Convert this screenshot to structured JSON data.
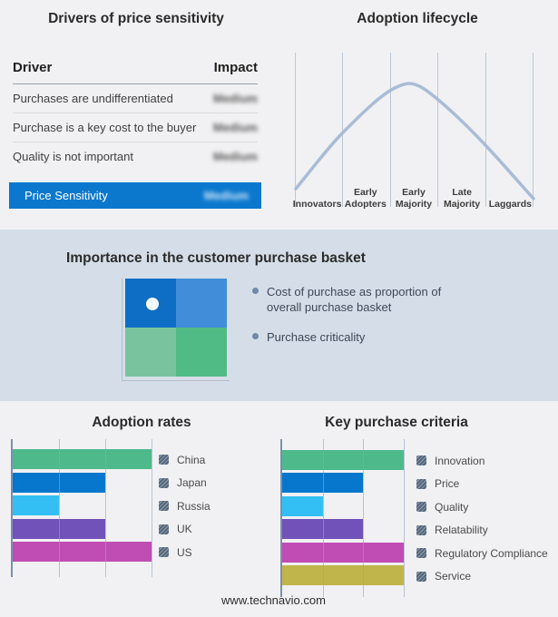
{
  "drivers": {
    "title": "Drivers of price sensitivity",
    "headers": {
      "driver": "Driver",
      "impact": "Impact"
    },
    "rows": [
      {
        "driver": "Purchases are undifferentiated",
        "impact": "Medium",
        "impact_blurred": true
      },
      {
        "driver": "Purchase is a key cost to the buyer",
        "impact": "Medium",
        "impact_blurred": true
      },
      {
        "driver": "Quality is not important",
        "impact": "Medium",
        "impact_blurred": true
      }
    ],
    "highlight": {
      "driver": "Price Sensitivity",
      "impact": "Medium",
      "impact_blurred": true,
      "row_color": "#0b78ce"
    }
  },
  "lifecycle": {
    "title": "Adoption lifecycle",
    "curve_color": "#a9bcd7",
    "stages": [
      {
        "line1": "",
        "line2": "Innovators"
      },
      {
        "line1": "Early",
        "line2": "Adopters"
      },
      {
        "line1": "Early",
        "line2": "Majority"
      },
      {
        "line1": "Late",
        "line2": "Majority"
      },
      {
        "line1": "",
        "line2": "Laggards"
      }
    ]
  },
  "basket": {
    "title": "Importance in the customer purchase basket",
    "band_color": "#d5dee8",
    "bullets": [
      "Cost of purchase as proportion of overall purchase basket",
      "Purchase criticality"
    ],
    "quadrant_colors": {
      "top_left": "#0e6ec5",
      "top_right": "#418dda",
      "bottom_left": "#79c49e",
      "bottom_right": "#51bb86"
    }
  },
  "footer": {
    "url": "www.technavio.com"
  },
  "chart_data": [
    {
      "type": "line",
      "title": "Adoption lifecycle",
      "x_categories": [
        "Innovators",
        "Early Adopters",
        "Early Majority",
        "Late Majority",
        "Laggards"
      ],
      "curve": "bell curve peaking within Early Majority",
      "points_norm_x_leftToRight_y_bottomUp": [
        [
          0.0,
          0.14
        ],
        [
          0.2,
          0.5
        ],
        [
          0.4,
          0.76
        ],
        [
          0.48,
          0.81
        ],
        [
          0.6,
          0.7
        ],
        [
          0.8,
          0.42
        ],
        [
          1.0,
          0.08
        ]
      ],
      "grid": "vertical dividers at stage boundaries",
      "axis_labels_shown": false
    },
    {
      "type": "bar",
      "orientation": "horizontal",
      "title": "Adoption rates",
      "categories": [
        "China",
        "Japan",
        "Russia",
        "UK",
        "US"
      ],
      "values": [
        3,
        2,
        1,
        2,
        3
      ],
      "xlim": [
        0,
        3
      ],
      "axis_tick_labels_shown": false,
      "colors": [
        "#4eb98a",
        "#0677cd",
        "#33bff3",
        "#7052b8",
        "#c04db4"
      ],
      "legend_position": "right",
      "legend_swatch": "hatched-gray"
    },
    {
      "type": "bar",
      "orientation": "horizontal",
      "title": "Key purchase criteria",
      "categories": [
        "Innovation",
        "Price",
        "Quality",
        "Relatability",
        "Regulatory Compliance",
        "Service"
      ],
      "values": [
        3,
        2,
        1,
        2,
        3,
        3
      ],
      "xlim": [
        0,
        3
      ],
      "axis_tick_labels_shown": false,
      "colors": [
        "#4eb98a",
        "#0677cd",
        "#33bff3",
        "#7052b8",
        "#c04db4",
        "#c0b54b"
      ],
      "legend_position": "right",
      "legend_swatch": "hatched-gray"
    }
  ]
}
